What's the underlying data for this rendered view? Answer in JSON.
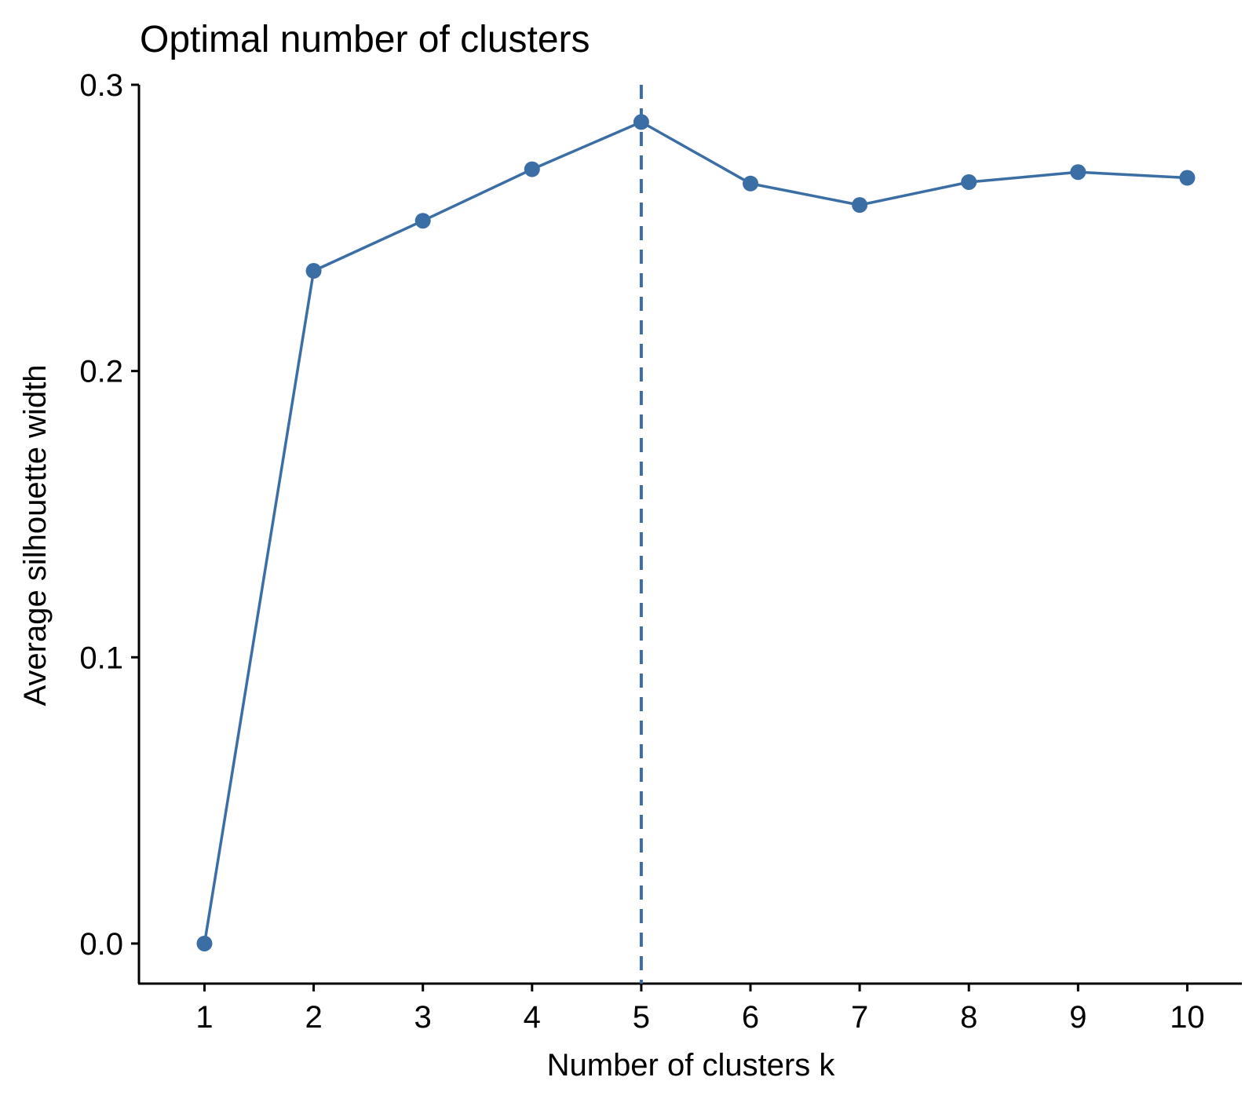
{
  "chart_data": {
    "type": "line",
    "title": "Optimal number of clusters",
    "xlabel": "Number of clusters k",
    "ylabel": "Average silhouette width",
    "x": [
      1,
      2,
      3,
      4,
      5,
      6,
      7,
      8,
      9,
      10
    ],
    "x_tick_labels": [
      "1",
      "2",
      "3",
      "4",
      "5",
      "6",
      "7",
      "8",
      "9",
      "10"
    ],
    "y_ticks": [
      0.0,
      0.1,
      0.2,
      0.3
    ],
    "y_tick_labels": [
      "0.0",
      "0.1",
      "0.2",
      "0.3"
    ],
    "xlim": [
      0.4,
      10.5
    ],
    "ylim": [
      -0.014,
      0.3
    ],
    "series": [
      {
        "values": [
          0.0,
          0.235,
          0.2525,
          0.2705,
          0.287,
          0.2655,
          0.258,
          0.266,
          0.2695,
          0.2675
        ]
      }
    ],
    "reference_line": {
      "x": 5,
      "style": "dashed"
    },
    "grid": false,
    "legend": "none",
    "colors": {
      "series": "#3b6ea5",
      "axis": "#000000"
    }
  }
}
